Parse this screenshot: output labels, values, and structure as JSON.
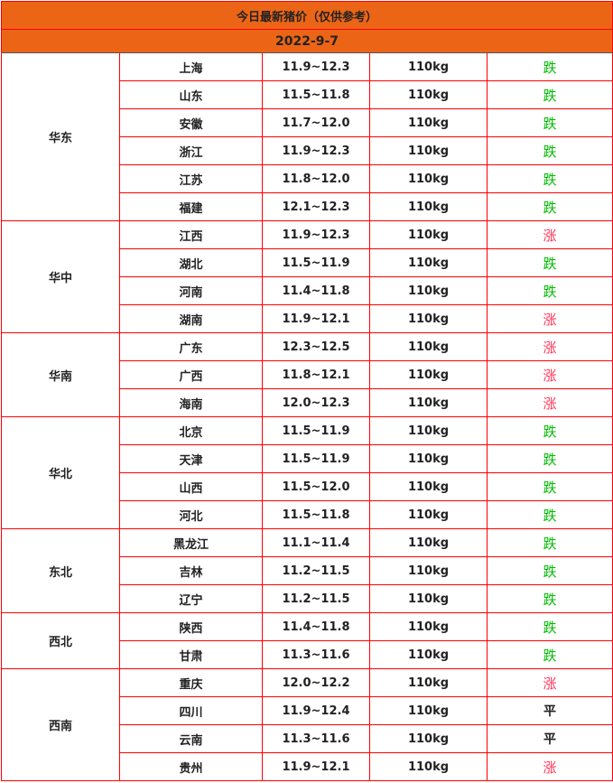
{
  "title": "今日最新猪价（仅供参考）",
  "date": "2022-9-7",
  "colors": {
    "header_bg": "#ec6516",
    "border": "#ff0000",
    "up": "#ff3355",
    "down": "#00bb00"
  },
  "regions": [
    {
      "name": "华东",
      "rows": [
        {
          "province": "上海",
          "price": "11.9~12.3",
          "weight": "110kg",
          "trend": "跌"
        },
        {
          "province": "山东",
          "price": "11.5~11.8",
          "weight": "110kg",
          "trend": "跌"
        },
        {
          "province": "安徽",
          "price": "11.7~12.0",
          "weight": "110kg",
          "trend": "跌"
        },
        {
          "province": "浙江",
          "price": "11.9~12.3",
          "weight": "110kg",
          "trend": "跌"
        },
        {
          "province": "江苏",
          "price": "11.8~12.0",
          "weight": "110kg",
          "trend": "跌"
        },
        {
          "province": "福建",
          "price": "12.1~12.3",
          "weight": "110kg",
          "trend": "跌"
        }
      ]
    },
    {
      "name": "华中",
      "rows": [
        {
          "province": "江西",
          "price": "11.9~12.3",
          "weight": "110kg",
          "trend": "涨"
        },
        {
          "province": "湖北",
          "price": "11.5~11.9",
          "weight": "110kg",
          "trend": "跌"
        },
        {
          "province": "河南",
          "price": "11.4~11.8",
          "weight": "110kg",
          "trend": "跌"
        },
        {
          "province": "湖南",
          "price": "11.9~12.1",
          "weight": "110kg",
          "trend": "涨"
        }
      ]
    },
    {
      "name": "华南",
      "rows": [
        {
          "province": "广东",
          "price": "12.3~12.5",
          "weight": "110kg",
          "trend": "涨"
        },
        {
          "province": "广西",
          "price": "11.8~12.1",
          "weight": "110kg",
          "trend": "涨"
        },
        {
          "province": "海南",
          "price": "12.0~12.3",
          "weight": "110kg",
          "trend": "涨"
        }
      ]
    },
    {
      "name": "华北",
      "rows": [
        {
          "province": "北京",
          "price": "11.5~11.9",
          "weight": "110kg",
          "trend": "跌"
        },
        {
          "province": "天津",
          "price": "11.5~11.9",
          "weight": "110kg",
          "trend": "跌"
        },
        {
          "province": "山西",
          "price": "11.5~12.0",
          "weight": "110kg",
          "trend": "跌"
        },
        {
          "province": "河北",
          "price": "11.5~11.8",
          "weight": "110kg",
          "trend": "跌"
        }
      ]
    },
    {
      "name": "东北",
      "rows": [
        {
          "province": "黑龙江",
          "price": "11.1~11.4",
          "weight": "110kg",
          "trend": "跌"
        },
        {
          "province": "吉林",
          "price": "11.2~11.5",
          "weight": "110kg",
          "trend": "跌"
        },
        {
          "province": "辽宁",
          "price": "11.2~11.5",
          "weight": "110kg",
          "trend": "跌"
        }
      ]
    },
    {
      "name": "西北",
      "rows": [
        {
          "province": "陕西",
          "price": "11.4~11.8",
          "weight": "110kg",
          "trend": "跌"
        },
        {
          "province": "甘肃",
          "price": "11.3~11.6",
          "weight": "110kg",
          "trend": "跌"
        }
      ]
    },
    {
      "name": "西南",
      "rows": [
        {
          "province": "重庆",
          "price": "12.0~12.2",
          "weight": "110kg",
          "trend": "涨"
        },
        {
          "province": "四川",
          "price": "11.9~12.4",
          "weight": "110kg",
          "trend": "平"
        },
        {
          "province": "云南",
          "price": "11.3~11.6",
          "weight": "110kg",
          "trend": "平"
        },
        {
          "province": "贵州",
          "price": "11.9~12.1",
          "weight": "110kg",
          "trend": "涨"
        }
      ]
    }
  ]
}
